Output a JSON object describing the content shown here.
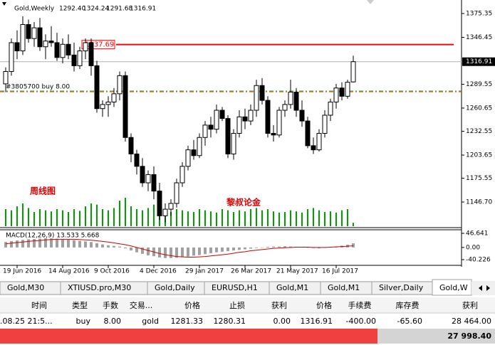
{
  "window": {
    "symbol": "Gold,Weekly",
    "ohlc": [
      "1292.40",
      "1324.24",
      "1291.68",
      "1316.91"
    ]
  },
  "chart_data": {
    "type": "candlestick",
    "candles": [
      [
        1290,
        1310,
        1280,
        1305
      ],
      [
        1305,
        1345,
        1300,
        1340
      ],
      [
        1340,
        1355,
        1320,
        1330
      ],
      [
        1330,
        1372,
        1325,
        1362
      ],
      [
        1362,
        1368,
        1340,
        1345
      ],
      [
        1345,
        1365,
        1335,
        1358
      ],
      [
        1358,
        1370,
        1330,
        1335
      ],
      [
        1335,
        1350,
        1320,
        1342
      ],
      [
        1342,
        1360,
        1335,
        1340
      ],
      [
        1340,
        1352,
        1318,
        1322
      ],
      [
        1322,
        1345,
        1315,
        1338
      ],
      [
        1338,
        1350,
        1320,
        1325
      ],
      [
        1325,
        1340,
        1305,
        1312
      ],
      [
        1312,
        1335,
        1308,
        1330
      ],
      [
        1330,
        1345,
        1320,
        1340
      ],
      [
        1340,
        1345,
        1300,
        1312
      ],
      [
        1312,
        1318,
        1255,
        1260
      ],
      [
        1260,
        1270,
        1250,
        1265
      ],
      [
        1265,
        1275,
        1250,
        1268
      ],
      [
        1268,
        1285,
        1262,
        1278
      ],
      [
        1278,
        1305,
        1270,
        1300
      ],
      [
        1300,
        1305,
        1220,
        1225
      ],
      [
        1225,
        1230,
        1195,
        1205
      ],
      [
        1205,
        1210,
        1180,
        1190
      ],
      [
        1190,
        1200,
        1165,
        1170
      ],
      [
        1170,
        1185,
        1160,
        1180
      ],
      [
        1180,
        1190,
        1150,
        1160
      ],
      [
        1160,
        1170,
        1125,
        1130
      ],
      [
        1130,
        1145,
        1122,
        1138
      ],
      [
        1138,
        1150,
        1130,
        1145
      ],
      [
        1145,
        1175,
        1140,
        1170
      ],
      [
        1170,
        1195,
        1165,
        1190
      ],
      [
        1190,
        1215,
        1185,
        1210
      ],
      [
        1210,
        1222,
        1198,
        1203
      ],
      [
        1203,
        1230,
        1200,
        1225
      ],
      [
        1225,
        1245,
        1215,
        1240
      ],
      [
        1240,
        1250,
        1225,
        1235
      ],
      [
        1235,
        1265,
        1230,
        1258
      ],
      [
        1258,
        1262,
        1245,
        1248
      ],
      [
        1248,
        1252,
        1200,
        1205
      ],
      [
        1205,
        1235,
        1198,
        1230
      ],
      [
        1230,
        1258,
        1225,
        1250
      ],
      [
        1250,
        1260,
        1235,
        1245
      ],
      [
        1245,
        1265,
        1240,
        1258
      ],
      [
        1258,
        1295,
        1250,
        1288
      ],
      [
        1288,
        1297,
        1265,
        1270
      ],
      [
        1270,
        1275,
        1225,
        1230
      ],
      [
        1230,
        1240,
        1220,
        1228
      ],
      [
        1228,
        1262,
        1225,
        1258
      ],
      [
        1258,
        1270,
        1250,
        1265
      ],
      [
        1265,
        1295,
        1260,
        1280
      ],
      [
        1280,
        1285,
        1250,
        1258
      ],
      [
        1258,
        1270,
        1238,
        1245
      ],
      [
        1245,
        1250,
        1212,
        1215
      ],
      [
        1215,
        1225,
        1205,
        1210
      ],
      [
        1210,
        1235,
        1208,
        1230
      ],
      [
        1230,
        1258,
        1225,
        1252
      ],
      [
        1252,
        1272,
        1245,
        1268
      ],
      [
        1268,
        1290,
        1260,
        1285
      ],
      [
        1285,
        1292,
        1270,
        1275
      ],
      [
        1275,
        1295,
        1272,
        1292
      ],
      [
        1292.4,
        1324.24,
        1291.68,
        1316.91
      ]
    ],
    "up_color": "#ffffff",
    "down_color": "#000000",
    "ylim": [
      1117.37,
      1387.43
    ],
    "yticks": [
      1375.35,
      1346.45,
      1289.55,
      1260.65,
      1232.55,
      1203.65,
      1175.55,
      {
        "value": 1146.7,
        "label": "1146.70"
      }
    ],
    "xticks": [
      {
        "value": 2,
        "label": "19 Jun 2016"
      },
      {
        "value": 10,
        "label": "14 Aug 2016"
      },
      {
        "value": 18,
        "label": "9 Oct 2016"
      },
      {
        "value": 26,
        "label": "4 Dec 2016"
      },
      {
        "value": 34,
        "label": "29 Jan 2017"
      },
      {
        "value": 42,
        "label": "26 Mar 2017"
      },
      {
        "value": 50,
        "label": "21 May 2017"
      },
      {
        "value": 58,
        "label": "16 Jul 2017"
      }
    ],
    "volumes": [
      30,
      28,
      35,
      40,
      32,
      25,
      30,
      28,
      26,
      30,
      28,
      25,
      30,
      27,
      35,
      40,
      38,
      30,
      28,
      32,
      45,
      50,
      35,
      30,
      28,
      32,
      38,
      40,
      30,
      25,
      30,
      28,
      26,
      25,
      30,
      28,
      26,
      24,
      30,
      28,
      25,
      28,
      26,
      30,
      32,
      28,
      30,
      26,
      24,
      25,
      28,
      26,
      24,
      30,
      32,
      28,
      25,
      26,
      24,
      28,
      30,
      6
    ],
    "volume_color": "#00a000",
    "levels": [
      {
        "value": 1337.69,
        "color": "#ff0000"
      },
      {
        "value": 1281.33,
        "text": "#3805700 buy 8.00",
        "color": "#2e8b2e"
      },
      {
        "value": 1280.31,
        "color": "#e06000"
      }
    ],
    "annotations": [
      "周线图",
      "黎叔论金"
    ],
    "macd": {
      "label": "MACD(12,26,9) 13.533 5.668",
      "ylim": [
        -40.226,
        46.641
      ],
      "yticks": [
        46.641,
        {
          "value": 0,
          "label": "0.00"
        },
        -40.226
      ],
      "histogram": [
        18,
        21,
        23,
        25,
        27,
        28,
        29,
        30,
        30,
        29,
        28,
        26,
        24,
        22,
        20,
        18,
        14,
        10,
        7,
        5,
        3,
        -3,
        -10,
        -16,
        -21,
        -26,
        -29,
        -33,
        -35,
        -35,
        -34,
        -32,
        -30,
        -27,
        -25,
        -22,
        -19,
        -16,
        -14,
        -12,
        -10,
        -8,
        -6,
        -4,
        -2,
        0,
        2,
        3,
        3,
        4,
        3,
        2,
        1,
        0,
        -2,
        -3,
        -1,
        1,
        3,
        6,
        9,
        13.533
      ],
      "signal": [
        12,
        14,
        16,
        18,
        20,
        22,
        23,
        25,
        26,
        27,
        27,
        27,
        27,
        26,
        25,
        24,
        22,
        20,
        18,
        15,
        12,
        9,
        5,
        0,
        -5,
        -10,
        -15,
        -20,
        -24,
        -27,
        -30,
        -31,
        -32,
        -32,
        -31,
        -30,
        -28,
        -26,
        -24,
        -22,
        -19,
        -16,
        -14,
        -11,
        -9,
        -7,
        -5,
        -3,
        -2,
        -1,
        0,
        1,
        1,
        1,
        0,
        0,
        0,
        1,
        2,
        3,
        4,
        5.668
      ],
      "histogram_color": "#a0a0a0",
      "signal_color": "#d00000"
    }
  },
  "tabs": [
    "Gold,M30",
    "XTIUSD.pro,M30",
    "Gold,Daily",
    "EURUSD,H1",
    "Gold,M1",
    "Gold,M1",
    "Silver,Daily",
    "Gold,W"
  ],
  "table": {
    "headers": [
      "时间",
      "类型",
      "手数",
      "交易...",
      "价格",
      "止损",
      "获利",
      "价格",
      "手续费",
      "库存费",
      "获利"
    ],
    "rows": [
      [
        ".08.25 21:5...",
        "buy",
        "8.00",
        "gold",
        "1281.33",
        "1280.31",
        "0.00",
        "1316.91",
        "-400.00",
        "-65.60",
        "28 464.00"
      ]
    ],
    "total": "27 998.40"
  }
}
